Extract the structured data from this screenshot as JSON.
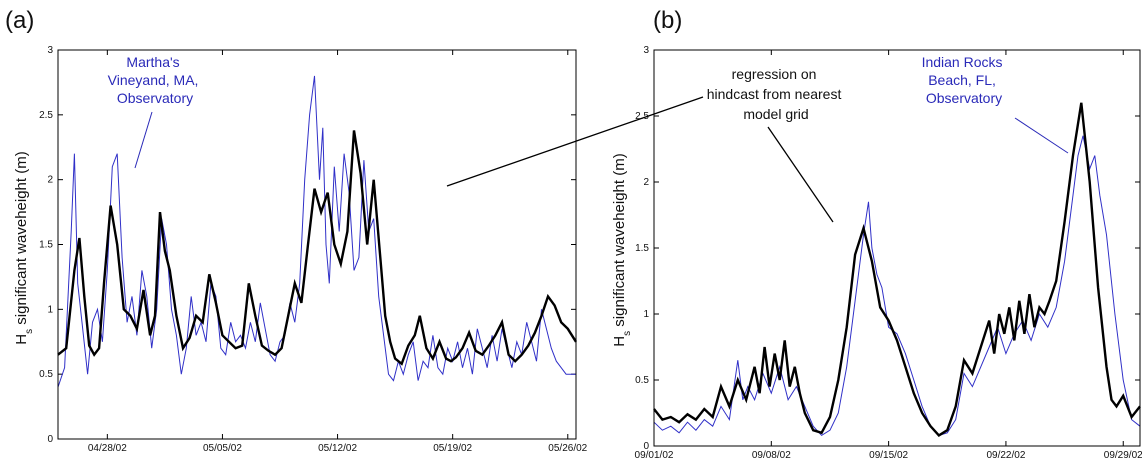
{
  "colors": {
    "observed": "#3030c8",
    "model": "#000000",
    "annotation_blue": "#2a2ab8"
  },
  "ylabel_main": "H",
  "ylabel_sub": "s",
  "ylabel_rest": " significant waveheight (m)",
  "annotation_model": [
    "regression on",
    "hindcast from nearest",
    "model grid"
  ],
  "chart_data": [
    {
      "type": "line",
      "panel_label": "(a)",
      "xlabel": "",
      "ylabel": "Hs significant waveheight (m)",
      "ylim": [
        0,
        3
      ],
      "yticks": [
        "0",
        "0.5",
        "1",
        "1.5",
        "2",
        "2.5",
        "3"
      ],
      "xlim_days": [
        0,
        31.5
      ],
      "xticks": [
        {
          "day": 3,
          "label": "04/28/02"
        },
        {
          "day": 10,
          "label": "05/05/02"
        },
        {
          "day": 17,
          "label": "05/12/02"
        },
        {
          "day": 24,
          "label": "05/19/02"
        },
        {
          "day": 31,
          "label": "05/26/02"
        }
      ],
      "annotation_observed": [
        "Martha's",
        "Vineyand, MA,",
        "Observatory"
      ],
      "series": [
        {
          "name": "regression on hindcast from nearest model grid",
          "x": [
            0,
            0.5,
            1,
            1.3,
            1.6,
            1.9,
            2.2,
            2.5,
            2.8,
            3.2,
            3.6,
            4,
            4.4,
            4.8,
            5.2,
            5.6,
            5.9,
            6.2,
            6.5,
            6.8,
            7.2,
            7.6,
            8,
            8.4,
            8.8,
            9.2,
            9.6,
            10,
            10.4,
            10.8,
            11.2,
            11.6,
            12,
            12.4,
            12.8,
            13.2,
            13.6,
            14,
            14.4,
            14.8,
            15.2,
            15.6,
            16,
            16.4,
            16.8,
            17.2,
            17.6,
            18,
            18.4,
            18.8,
            19.2,
            19.6,
            19.9,
            20.2,
            20.5,
            20.9,
            21.3,
            21.7,
            22,
            22.4,
            22.8,
            23.2,
            23.6,
            23.9,
            24.2,
            24.6,
            25,
            25.4,
            25.8,
            26.2,
            26.6,
            27,
            27.4,
            27.8,
            28.2,
            28.6,
            29,
            29.4,
            29.8,
            30.2,
            30.6,
            31,
            31.5
          ],
          "y": [
            0.65,
            0.7,
            1.3,
            1.55,
            1.1,
            0.72,
            0.65,
            0.7,
            1.2,
            1.8,
            1.5,
            1,
            0.95,
            0.85,
            1.15,
            0.8,
            0.95,
            1.75,
            1.45,
            1.3,
            0.95,
            0.7,
            0.78,
            0.95,
            0.9,
            1.27,
            1.05,
            0.8,
            0.75,
            0.7,
            0.72,
            1.2,
            0.95,
            0.72,
            0.68,
            0.65,
            0.7,
            0.95,
            1.2,
            1.05,
            1.5,
            1.93,
            1.75,
            1.9,
            1.5,
            1.35,
            1.6,
            2.38,
            2.05,
            1.5,
            2,
            1.4,
            0.95,
            0.75,
            0.62,
            0.58,
            0.72,
            0.8,
            0.95,
            0.7,
            0.62,
            0.75,
            0.62,
            0.6,
            0.63,
            0.7,
            0.82,
            0.68,
            0.65,
            0.72,
            0.8,
            0.9,
            0.65,
            0.6,
            0.65,
            0.72,
            0.82,
            0.95,
            1.1,
            1.03,
            0.9,
            0.85,
            0.75
          ]
        },
        {
          "name": "Martha's Vineyand, MA, Observatory",
          "x": [
            0,
            0.4,
            0.8,
            1,
            1.2,
            1.5,
            1.8,
            2.1,
            2.4,
            2.7,
            3,
            3.3,
            3.6,
            3.9,
            4.2,
            4.5,
            4.8,
            5.1,
            5.4,
            5.7,
            6,
            6.3,
            6.6,
            6.9,
            7.2,
            7.5,
            7.8,
            8.1,
            8.4,
            8.7,
            9,
            9.3,
            9.6,
            9.9,
            10.2,
            10.5,
            10.8,
            11.1,
            11.4,
            11.7,
            12,
            12.3,
            12.6,
            12.9,
            13.2,
            13.5,
            13.8,
            14.1,
            14.4,
            14.7,
            15,
            15.3,
            15.6,
            15.9,
            16.1,
            16.3,
            16.5,
            16.8,
            17.1,
            17.4,
            17.7,
            18,
            18.3,
            18.6,
            18.9,
            19.2,
            19.5,
            19.8,
            20.1,
            20.4,
            20.7,
            21,
            21.3,
            21.6,
            21.9,
            22.2,
            22.5,
            22.8,
            23.1,
            23.4,
            23.7,
            24,
            24.3,
            24.6,
            24.9,
            25.2,
            25.5,
            25.8,
            26.1,
            26.4,
            26.7,
            27,
            27.3,
            27.6,
            27.9,
            28.2,
            28.5,
            28.8,
            29.1,
            29.4,
            29.7,
            30,
            30.3,
            30.6,
            30.9,
            31.2,
            31.5
          ],
          "y": [
            0.4,
            0.55,
            1.6,
            2.2,
            1.2,
            0.85,
            0.5,
            0.9,
            1.0,
            0.75,
            1.3,
            2.1,
            2.2,
            1.4,
            0.9,
            1.1,
            0.8,
            1.3,
            1.1,
            0.7,
            1.0,
            1.7,
            1.5,
            1.0,
            0.8,
            0.5,
            0.7,
            1.1,
            0.8,
            0.9,
            0.75,
            1.2,
            1.1,
            0.7,
            0.65,
            0.9,
            0.75,
            0.8,
            0.7,
            0.9,
            0.75,
            1.05,
            0.85,
            0.65,
            0.6,
            0.75,
            0.8,
            1.05,
            0.9,
            1.2,
            2.0,
            2.5,
            2.8,
            2.0,
            2.4,
            1.5,
            1.2,
            2.1,
            1.6,
            2.2,
            1.9,
            1.3,
            1.4,
            2.15,
            1.6,
            1.7,
            1.1,
            0.8,
            0.5,
            0.45,
            0.6,
            0.5,
            0.65,
            0.75,
            0.45,
            0.6,
            0.55,
            0.8,
            0.55,
            0.5,
            0.7,
            0.6,
            0.75,
            0.55,
            0.7,
            0.5,
            0.85,
            0.7,
            0.55,
            0.8,
            0.6,
            0.85,
            0.7,
            0.55,
            0.75,
            0.65,
            0.9,
            0.75,
            0.6,
            1.0,
            0.85,
            0.7,
            0.6,
            0.55,
            0.5,
            0.5,
            0.5
          ]
        }
      ]
    },
    {
      "type": "line",
      "panel_label": "(b)",
      "xlabel": "",
      "ylabel": "Hs significant waveheight (m)",
      "ylim": [
        0,
        3
      ],
      "yticks": [
        "0",
        "0.5",
        "1",
        "1.5",
        "2",
        "2.5",
        "3"
      ],
      "xlim_days": [
        0,
        29
      ],
      "xticks": [
        {
          "day": 0,
          "label": "09/01/02"
        },
        {
          "day": 7,
          "label": "09/08/02"
        },
        {
          "day": 14,
          "label": "09/15/02"
        },
        {
          "day": 21,
          "label": "09/22/02"
        },
        {
          "day": 28,
          "label": "09/29/02"
        }
      ],
      "annotation_observed": [
        "Indian Rocks",
        "Beach, FL,",
        "Observatory"
      ],
      "series": [
        {
          "name": "regression on hindcast from nearest model grid",
          "x": [
            0,
            0.5,
            1,
            1.5,
            2,
            2.5,
            3,
            3.5,
            4,
            4.5,
            5,
            5.5,
            6,
            6.3,
            6.6,
            6.9,
            7.2,
            7.5,
            7.8,
            8.1,
            8.4,
            8.7,
            9,
            9.5,
            10,
            10.5,
            11,
            11.5,
            12,
            12.5,
            13,
            13.5,
            14,
            14.5,
            15,
            15.5,
            16,
            16.5,
            17,
            17.5,
            18,
            18.5,
            19,
            19.5,
            20,
            20.3,
            20.6,
            20.9,
            21.2,
            21.5,
            21.8,
            22.1,
            22.4,
            22.7,
            23,
            23.3,
            23.6,
            24,
            24.5,
            25,
            25.5,
            26,
            26.5,
            27,
            27.3,
            27.6,
            28,
            28.5,
            29
          ],
          "y": [
            0.28,
            0.2,
            0.22,
            0.18,
            0.24,
            0.2,
            0.28,
            0.22,
            0.45,
            0.3,
            0.5,
            0.35,
            0.6,
            0.4,
            0.75,
            0.45,
            0.7,
            0.5,
            0.8,
            0.45,
            0.6,
            0.4,
            0.25,
            0.12,
            0.1,
            0.22,
            0.5,
            0.9,
            1.45,
            1.65,
            1.4,
            1.05,
            0.95,
            0.8,
            0.6,
            0.4,
            0.25,
            0.15,
            0.08,
            0.12,
            0.3,
            0.65,
            0.55,
            0.75,
            0.95,
            0.7,
            1.0,
            0.85,
            1.05,
            0.8,
            1.1,
            0.85,
            1.15,
            0.9,
            1.05,
            1.0,
            1.1,
            1.25,
            1.7,
            2.2,
            2.6,
            2.0,
            1.2,
            0.6,
            0.35,
            0.3,
            0.38,
            0.22,
            0.3
          ]
        },
        {
          "name": "Indian Rocks Beach, FL, Observatory",
          "x": [
            0,
            0.5,
            1,
            1.5,
            2,
            2.5,
            3,
            3.5,
            4,
            4.5,
            5,
            5.3,
            5.6,
            6,
            6.5,
            7,
            7.5,
            8,
            8.5,
            9,
            9.5,
            10,
            10.5,
            11,
            11.5,
            12,
            12.5,
            12.8,
            13,
            13.3,
            13.6,
            14,
            14.5,
            15,
            15.5,
            16,
            16.5,
            17,
            17.5,
            18,
            18.5,
            19,
            19.5,
            20,
            20.5,
            21,
            21.5,
            22,
            22.5,
            23,
            23.5,
            24,
            24.5,
            25,
            25.3,
            25.6,
            26,
            26.3,
            26.6,
            27,
            27.5,
            28,
            28.5,
            29
          ],
          "y": [
            0.18,
            0.12,
            0.15,
            0.1,
            0.18,
            0.12,
            0.2,
            0.15,
            0.3,
            0.2,
            0.65,
            0.35,
            0.45,
            0.35,
            0.55,
            0.4,
            0.6,
            0.35,
            0.45,
            0.3,
            0.15,
            0.08,
            0.12,
            0.25,
            0.6,
            1.1,
            1.6,
            1.85,
            1.5,
            1.3,
            1.2,
            0.9,
            0.85,
            0.7,
            0.5,
            0.3,
            0.15,
            0.08,
            0.1,
            0.2,
            0.55,
            0.45,
            0.6,
            0.75,
            0.9,
            0.7,
            0.85,
            0.95,
            0.8,
            1.0,
            0.9,
            1.05,
            1.4,
            1.9,
            2.2,
            2.35,
            2.1,
            2.2,
            1.9,
            1.6,
            1.0,
            0.5,
            0.2,
            0.15
          ]
        }
      ]
    }
  ]
}
